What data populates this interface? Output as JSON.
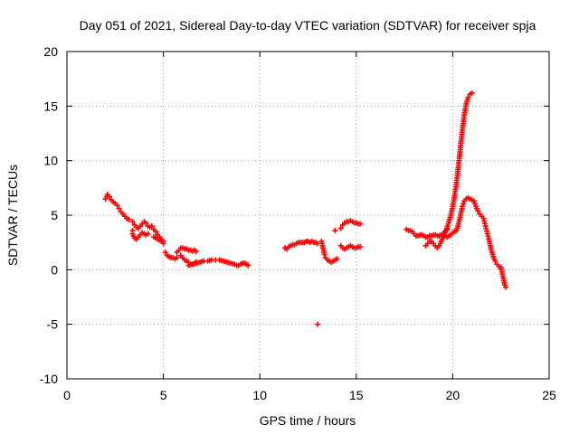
{
  "chart_data": {
    "type": "scatter",
    "title": "Day 051 of 2021, Sidereal Day-to-day VTEC variation (SDTVAR) for receiver spja",
    "xlabel": "GPS time / hours",
    "ylabel": "SDTVAR / TECUs",
    "xlim": [
      0,
      25
    ],
    "ylim": [
      -10,
      20
    ],
    "x_ticks": [
      0,
      5,
      10,
      15,
      20,
      25
    ],
    "y_ticks": [
      -10,
      -5,
      0,
      5,
      10,
      15,
      20
    ],
    "grid": true,
    "marker": "+",
    "series": [
      {
        "name": "SDTVAR",
        "color": "#ff0000",
        "segments": [
          [
            [
              2.0,
              6.5
            ],
            [
              2.1,
              6.9
            ],
            [
              2.2,
              6.7
            ],
            [
              2.3,
              6.4
            ],
            [
              2.4,
              6.2
            ],
            [
              2.5,
              6.1
            ],
            [
              2.6,
              5.9
            ],
            [
              2.7,
              5.6
            ],
            [
              2.8,
              5.3
            ],
            [
              2.9,
              5.1
            ],
            [
              3.0,
              4.9
            ],
            [
              3.1,
              4.7
            ],
            [
              3.2,
              4.6
            ]
          ],
          [
            [
              3.4,
              4.4
            ],
            [
              3.5,
              4.1
            ],
            [
              3.6,
              3.9
            ],
            [
              3.7,
              3.8
            ],
            [
              3.8,
              4.0
            ],
            [
              3.9,
              4.2
            ],
            [
              4.0,
              4.4
            ],
            [
              4.1,
              4.3
            ],
            [
              4.2,
              4.0
            ],
            [
              4.3,
              3.9
            ]
          ],
          [
            [
              3.4,
              3.6
            ],
            [
              3.4,
              3.3
            ],
            [
              3.45,
              3.1
            ],
            [
              3.5,
              2.9
            ],
            [
              3.6,
              2.8
            ],
            [
              3.7,
              3.0
            ],
            [
              3.8,
              3.2
            ],
            [
              3.9,
              3.4
            ],
            [
              4.0,
              3.3
            ],
            [
              4.1,
              3.2
            ],
            [
              4.2,
              3.3
            ]
          ],
          [
            [
              4.4,
              4.0
            ],
            [
              4.5,
              3.7
            ],
            [
              4.6,
              3.5
            ],
            [
              4.7,
              3.2
            ],
            [
              4.8,
              3.0
            ],
            [
              4.9,
              2.8
            ],
            [
              5.0,
              2.6
            ]
          ],
          [
            [
              4.5,
              3.0
            ],
            [
              4.6,
              2.9
            ],
            [
              4.7,
              2.8
            ],
            [
              4.8,
              2.7
            ],
            [
              4.9,
              2.6
            ],
            [
              5.0,
              2.4
            ]
          ],
          [
            [
              5.1,
              1.6
            ],
            [
              5.2,
              1.3
            ],
            [
              5.3,
              1.2
            ],
            [
              5.4,
              1.1
            ],
            [
              5.5,
              1.1
            ],
            [
              5.6,
              1.0
            ],
            [
              5.7,
              1.1
            ]
          ],
          [
            [
              5.7,
              1.6
            ],
            [
              5.8,
              1.8
            ],
            [
              5.9,
              2.0
            ],
            [
              6.0,
              2.0
            ],
            [
              6.1,
              1.9
            ],
            [
              6.2,
              1.9
            ],
            [
              6.3,
              1.8
            ],
            [
              6.4,
              1.8
            ],
            [
              6.5,
              1.7
            ],
            [
              6.6,
              1.8
            ],
            [
              6.7,
              1.7
            ]
          ],
          [
            [
              5.9,
              1.3
            ],
            [
              6.0,
              1.1
            ],
            [
              6.1,
              0.9
            ],
            [
              6.2,
              0.8
            ],
            [
              6.3,
              0.7
            ],
            [
              6.4,
              0.5
            ],
            [
              6.5,
              0.5
            ],
            [
              6.6,
              0.6
            ],
            [
              6.7,
              0.7
            ]
          ],
          [
            [
              6.3,
              0.4
            ],
            [
              6.5,
              0.5
            ],
            [
              6.7,
              0.6
            ],
            [
              6.9,
              0.7
            ],
            [
              7.1,
              0.8
            ],
            [
              7.3,
              0.8
            ],
            [
              7.5,
              0.9
            ],
            [
              7.7,
              0.9
            ],
            [
              7.9,
              0.9
            ],
            [
              8.1,
              0.8
            ],
            [
              8.3,
              0.7
            ],
            [
              8.5,
              0.6
            ],
            [
              8.7,
              0.5
            ],
            [
              8.8,
              0.4
            ],
            [
              8.9,
              0.4
            ],
            [
              9.0,
              0.5
            ],
            [
              9.1,
              0.6
            ],
            [
              9.2,
              0.6
            ],
            [
              9.3,
              0.5
            ],
            [
              9.4,
              0.4
            ]
          ],
          [
            [
              11.3,
              2.0
            ],
            [
              11.4,
              1.9
            ],
            [
              11.5,
              2.1
            ],
            [
              11.6,
              2.2
            ],
            [
              11.7,
              2.3
            ],
            [
              11.8,
              2.3
            ],
            [
              11.9,
              2.4
            ],
            [
              12.0,
              2.5
            ],
            [
              12.1,
              2.5
            ],
            [
              12.2,
              2.5
            ],
            [
              12.3,
              2.5
            ],
            [
              12.4,
              2.6
            ],
            [
              12.5,
              2.6
            ],
            [
              12.6,
              2.5
            ],
            [
              12.7,
              2.6
            ],
            [
              12.8,
              2.5
            ],
            [
              12.9,
              2.5
            ],
            [
              13.0,
              2.4
            ]
          ],
          [
            [
              13.0,
              -5.0
            ]
          ],
          [
            [
              13.2,
              2.6
            ],
            [
              13.25,
              2.2
            ],
            [
              13.3,
              1.8
            ],
            [
              13.35,
              1.4
            ],
            [
              13.4,
              1.1
            ],
            [
              13.5,
              0.9
            ],
            [
              13.6,
              0.8
            ],
            [
              13.7,
              0.7
            ],
            [
              13.8,
              0.8
            ],
            [
              13.9,
              0.9
            ],
            [
              14.0,
              1.0
            ]
          ],
          [
            [
              13.9,
              3.6
            ]
          ],
          [
            [
              14.2,
              3.8
            ],
            [
              14.3,
              4.1
            ],
            [
              14.4,
              4.3
            ],
            [
              14.5,
              4.4
            ],
            [
              14.6,
              4.4
            ],
            [
              14.7,
              4.5
            ],
            [
              14.8,
              4.4
            ],
            [
              14.9,
              4.3
            ],
            [
              15.0,
              4.3
            ],
            [
              15.1,
              4.2
            ],
            [
              15.2,
              4.2
            ]
          ],
          [
            [
              14.2,
              2.2
            ],
            [
              14.3,
              2.0
            ],
            [
              14.4,
              1.9
            ],
            [
              14.5,
              2.0
            ],
            [
              14.6,
              2.1
            ],
            [
              14.7,
              2.2
            ],
            [
              14.8,
              2.1
            ],
            [
              14.9,
              2.0
            ],
            [
              15.0,
              2.0
            ],
            [
              15.1,
              2.1
            ],
            [
              15.2,
              2.1
            ]
          ],
          [
            [
              17.6,
              3.7
            ],
            [
              17.7,
              3.6
            ],
            [
              17.8,
              3.6
            ],
            [
              17.9,
              3.5
            ],
            [
              18.0,
              3.3
            ],
            [
              18.1,
              3.1
            ],
            [
              18.2,
              3.1
            ],
            [
              18.3,
              3.2
            ],
            [
              18.4,
              3.2
            ],
            [
              18.5,
              3.1
            ],
            [
              18.6,
              3.0
            ],
            [
              18.7,
              3.0
            ],
            [
              18.8,
              3.1
            ],
            [
              18.9,
              3.1
            ],
            [
              19.0,
              3.2
            ],
            [
              19.1,
              3.2
            ],
            [
              19.2,
              3.1
            ],
            [
              19.3,
              3.1
            ],
            [
              19.4,
              3.2
            ],
            [
              19.5,
              3.3
            ],
            [
              19.6,
              3.5
            ],
            [
              19.7,
              3.7
            ]
          ],
          [
            [
              18.6,
              2.2
            ],
            [
              18.7,
              2.4
            ],
            [
              18.8,
              2.6
            ],
            [
              18.9,
              2.6
            ],
            [
              19.0,
              2.4
            ],
            [
              19.1,
              2.2
            ],
            [
              19.2,
              2.0
            ],
            [
              19.3,
              2.2
            ],
            [
              19.4,
              2.6
            ],
            [
              19.5,
              3.0
            ],
            [
              19.6,
              3.4
            ],
            [
              19.7,
              3.8
            ],
            [
              19.8,
              4.4
            ],
            [
              19.9,
              5.0
            ],
            [
              20.0,
              5.8
            ],
            [
              20.1,
              6.8
            ],
            [
              20.2,
              8.0
            ],
            [
              20.3,
              9.6
            ],
            [
              20.4,
              11.2
            ],
            [
              20.5,
              12.8
            ],
            [
              20.6,
              14.2
            ],
            [
              20.7,
              15.2
            ],
            [
              20.8,
              15.8
            ],
            [
              20.9,
              16.1
            ],
            [
              21.0,
              16.2
            ]
          ],
          [
            [
              19.6,
              3.1
            ],
            [
              19.7,
              3.0
            ],
            [
              19.8,
              3.1
            ],
            [
              19.9,
              3.2
            ],
            [
              20.0,
              3.4
            ],
            [
              20.1,
              3.5
            ],
            [
              20.2,
              3.6
            ],
            [
              20.3,
              4.2
            ],
            [
              20.4,
              5.0
            ],
            [
              20.5,
              5.8
            ],
            [
              20.6,
              6.3
            ],
            [
              20.7,
              6.5
            ],
            [
              20.8,
              6.6
            ],
            [
              20.9,
              6.5
            ],
            [
              21.0,
              6.4
            ],
            [
              21.1,
              6.3
            ],
            [
              21.2,
              5.8
            ],
            [
              21.3,
              5.4
            ],
            [
              21.4,
              5.1
            ],
            [
              21.5,
              4.9
            ],
            [
              21.6,
              4.7
            ],
            [
              21.7,
              4.0
            ],
            [
              21.8,
              3.3
            ],
            [
              21.9,
              2.6
            ],
            [
              22.0,
              1.8
            ],
            [
              22.1,
              1.2
            ],
            [
              22.2,
              0.8
            ],
            [
              22.3,
              0.5
            ],
            [
              22.4,
              0.3
            ],
            [
              22.5,
              0.2
            ],
            [
              22.55,
              -0.2
            ],
            [
              22.6,
              -0.6
            ],
            [
              22.65,
              -1.0
            ],
            [
              22.7,
              -1.4
            ],
            [
              22.75,
              -1.6
            ]
          ]
        ]
      }
    ]
  }
}
